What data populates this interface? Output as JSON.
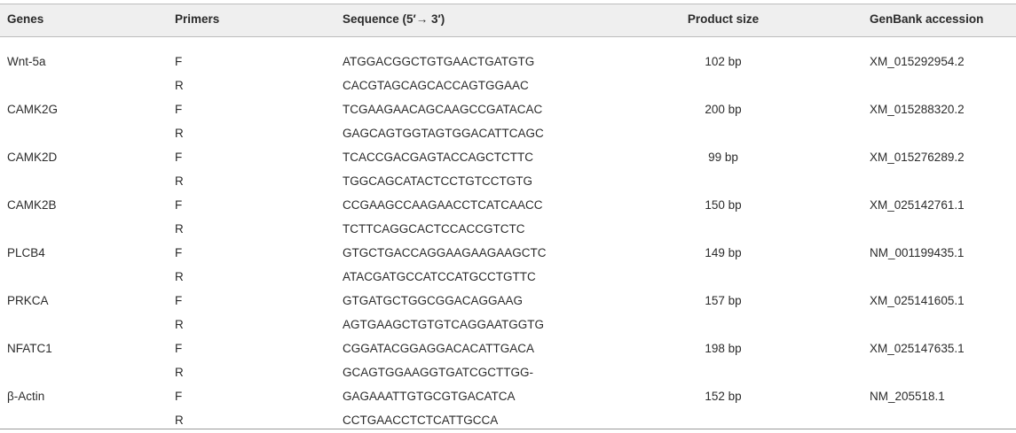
{
  "table": {
    "header": [
      "Genes",
      "Primers",
      "Sequence (5′→ 3′)",
      "Product size",
      "GenBank accession"
    ],
    "genes": [
      {
        "name": "Wnt-5a",
        "size": "102 bp",
        "accession": "XM_015292954.2",
        "primers": [
          {
            "primer": "F",
            "sequence": "ATGGACGGCTGTGAACTGATGTG"
          },
          {
            "primer": "R",
            "sequence": "CACGTAGCAGCACCAGTGGAAC"
          }
        ]
      },
      {
        "name": "CAMK2G",
        "size": "200 bp",
        "accession": "XM_015288320.2",
        "primers": [
          {
            "primer": "F",
            "sequence": "TCGAAGAACAGCAAGCCGATACAC"
          },
          {
            "primer": "R",
            "sequence": "GAGCAGTGGTAGTGGACATTCAGC"
          }
        ]
      },
      {
        "name": "CAMK2D",
        "size": "99 bp",
        "accession": "XM_015276289.2",
        "primers": [
          {
            "primer": "F",
            "sequence": "TCACCGACGAGTACCAGCTCTTC"
          },
          {
            "primer": "R",
            "sequence": "TGGCAGCATACTCCTGTCCTGTG"
          }
        ]
      },
      {
        "name": "CAMK2B",
        "size": "150 bp",
        "accession": "XM_025142761.1",
        "primers": [
          {
            "primer": "F",
            "sequence": "CCGAAGCCAAGAACCTCATCAACC"
          },
          {
            "primer": "R",
            "sequence": "TCTTCAGGCACTCCACCGTCTC"
          }
        ]
      },
      {
        "name": "PLCB4",
        "size": "149 bp",
        "accession": "NM_001199435.1",
        "primers": [
          {
            "primer": "F",
            "sequence": "GTGCTGACCAGGAAGAAGAAGCTC"
          },
          {
            "primer": "R",
            "sequence": "ATACGATGCCATCCATGCCTGTTC"
          }
        ]
      },
      {
        "name": "PRKCA",
        "size": "157 bp",
        "accession": "XM_025141605.1",
        "primers": [
          {
            "primer": "F",
            "sequence": "GTGATGCTGGCGGACAGGAAG"
          },
          {
            "primer": "R",
            "sequence": "AGTGAAGCTGTGTCAGGAATGGTG"
          }
        ]
      },
      {
        "name": "NFATC1",
        "size": "198 bp",
        "accession": "XM_025147635.1",
        "primers": [
          {
            "primer": "F",
            "sequence": "CGGATACGGAGGACACATTGACA"
          },
          {
            "primer": "R",
            "sequence": "GCAGTGGAAGGTGATCGCTTGG-"
          }
        ]
      },
      {
        "name": "β-Actin",
        "size": "152 bp",
        "accession": "NM_205518.1",
        "primers": [
          {
            "primer": "F",
            "sequence": "GAGAAATTGTGCGTGACATCA"
          },
          {
            "primer": "R",
            "sequence": "CCTGAACCTCTCATTGCCA"
          }
        ]
      }
    ]
  }
}
